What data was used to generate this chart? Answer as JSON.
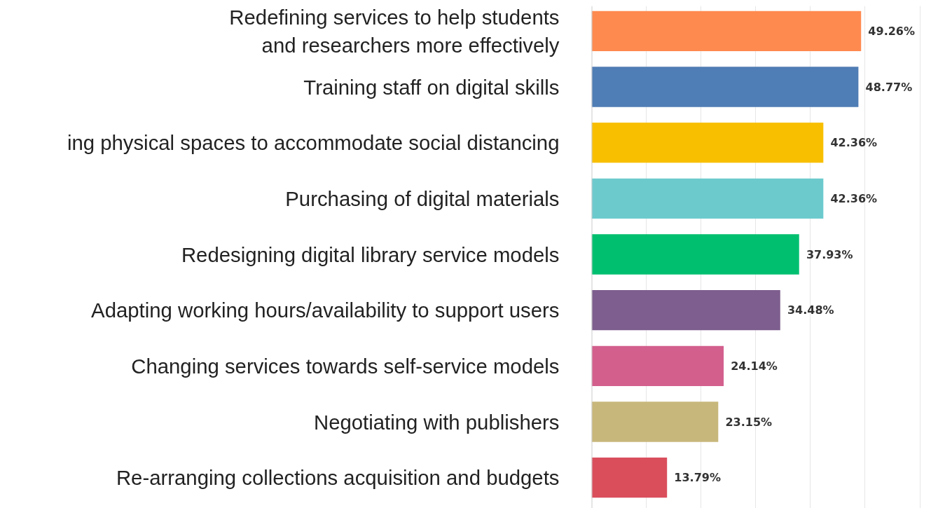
{
  "chart_data": {
    "type": "bar",
    "orientation": "horizontal",
    "categories": [
      "Redefining services to help students\nand researchers more effectively",
      "Training staff on digital skills",
      "ing physical spaces to accommodate social distancing",
      "Purchasing of digital materials",
      "Redesigning digital library service models",
      "Adapting working hours/availability to support users",
      "Changing services towards self-service models",
      "Negotiating with publishers",
      "Re-arranging collections acquisition and budgets"
    ],
    "values": [
      49.26,
      48.77,
      42.36,
      42.36,
      37.93,
      34.48,
      24.14,
      23.15,
      13.79
    ],
    "colors": [
      "#ff8a50",
      "#4f7db5",
      "#f8bf00",
      "#6ccacd",
      "#00bf6f",
      "#7d5e8e",
      "#d35f8d",
      "#c8b77b",
      "#da4e5c"
    ],
    "value_labels": [
      "49.26%",
      "48.77%",
      "42.36%",
      "42.36%",
      "37.93%",
      "34.48%",
      "24.14%",
      "23.15%",
      "13.79%"
    ],
    "xticks": [
      {
        "value": 10,
        "label": null
      },
      {
        "value": 20,
        "label": null
      },
      {
        "value": 30,
        "label": null
      },
      {
        "value": 40,
        "label": null
      },
      {
        "value": 50,
        "label": null
      },
      {
        "value": 60,
        "label": null
      }
    ],
    "grid": "x",
    "tick_labels": "y"
  }
}
